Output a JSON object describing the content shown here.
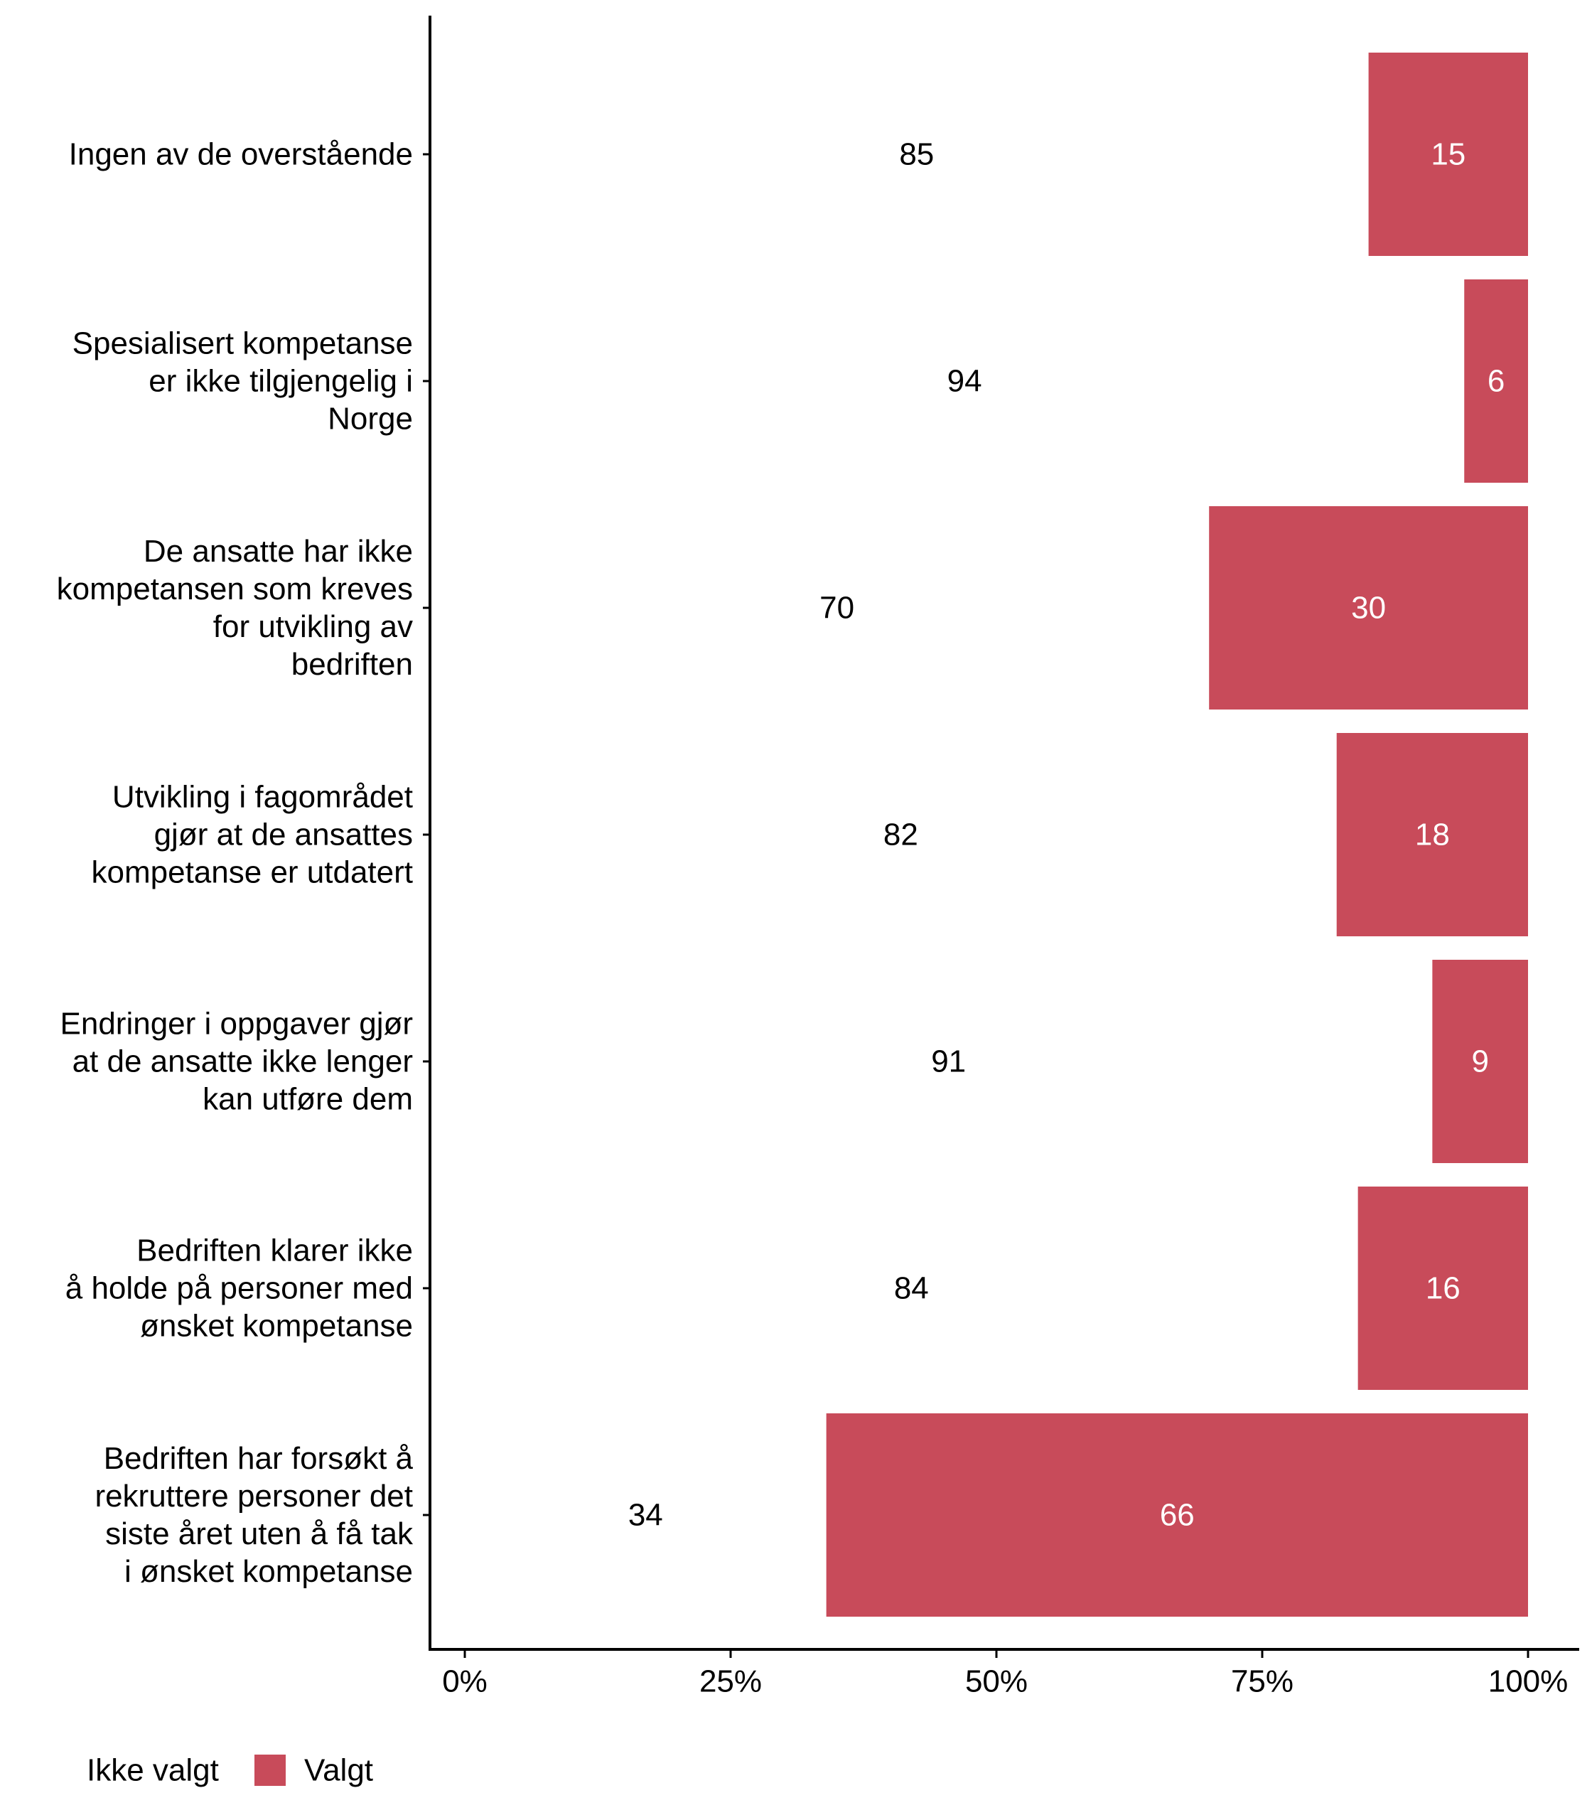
{
  "chart_data": {
    "type": "bar",
    "orientation": "horizontal",
    "stacked": true,
    "title": "",
    "xlabel": "",
    "ylabel": "",
    "xlim": [
      0,
      100
    ],
    "x_ticks": [
      "0%",
      "25%",
      "50%",
      "75%",
      "100%"
    ],
    "categories": [
      [
        "Ingen av de overstående"
      ],
      [
        "Spesialisert kompetanse",
        "er ikke tilgjengelig i",
        "Norge"
      ],
      [
        "De ansatte har ikke",
        "kompetansen som kreves",
        "for utvikling av",
        "bedriften"
      ],
      [
        "Utvikling i fagområdet",
        "gjør at de ansattes",
        "kompetanse er utdatert"
      ],
      [
        "Endringer i oppgaver gjør",
        "at de ansatte ikke lenger",
        "kan utføre dem"
      ],
      [
        "Bedriften klarer ikke",
        "å holde på personer med",
        "ønsket kompetanse"
      ],
      [
        "Bedriften har forsøkt å",
        "rekruttere personer det",
        "siste året uten å få tak",
        "i ønsket kompetanse"
      ]
    ],
    "series": [
      {
        "name": "Ikke valgt",
        "color": "#ffffff",
        "values": [
          85,
          94,
          70,
          82,
          91,
          84,
          34
        ]
      },
      {
        "name": "Valgt",
        "color": "#c84b5a",
        "values": [
          15,
          6,
          30,
          18,
          9,
          16,
          66
        ]
      }
    ],
    "legend": {
      "position": "bottom-left",
      "entries": [
        "Ikke valgt",
        "Valgt"
      ]
    }
  }
}
